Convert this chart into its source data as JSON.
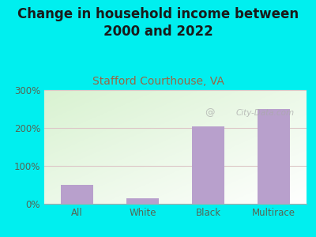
{
  "title": "Change in household income between\n2000 and 2022",
  "subtitle": "Stafford Courthouse, VA",
  "categories": [
    "All",
    "White",
    "Black",
    "Multirace"
  ],
  "values": [
    50,
    15,
    205,
    250
  ],
  "bar_color": "#b8a0cc",
  "background_color": "#00efef",
  "plot_bg_left": "#d8ecd0",
  "plot_bg_right": "#f8fff8",
  "title_color": "#1a1a1a",
  "subtitle_color": "#996644",
  "tick_color": "#556655",
  "grid_color": "#ddc8c8",
  "ylim": [
    0,
    300
  ],
  "yticks": [
    0,
    100,
    200,
    300
  ],
  "watermark": "City-Data.com",
  "title_fontsize": 12,
  "subtitle_fontsize": 10
}
